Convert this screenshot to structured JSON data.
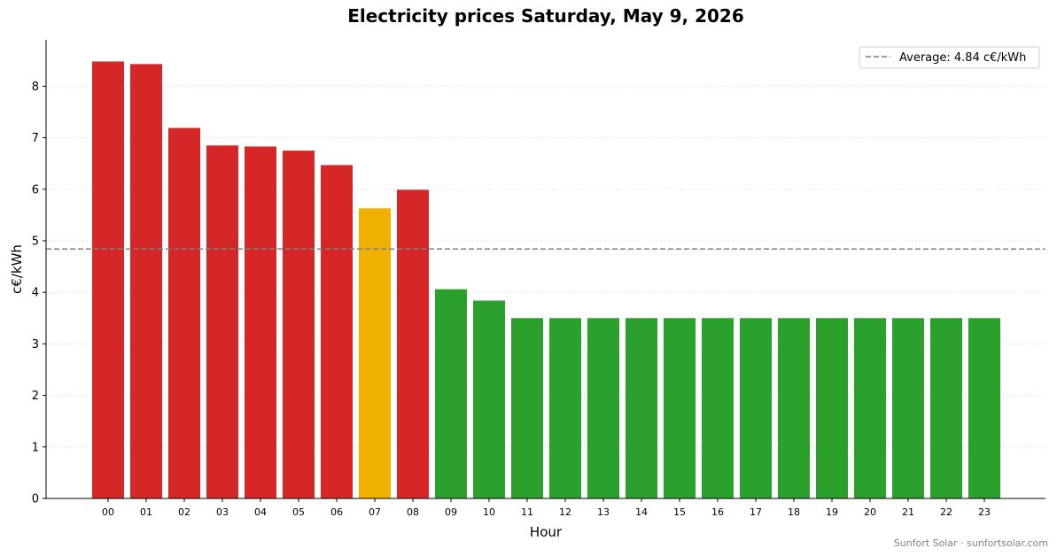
{
  "chart_data": {
    "type": "bar",
    "title": "Electricity prices Saturday, May 9, 2026",
    "xlabel": "Hour",
    "ylabel": "c€/kWh",
    "categories": [
      "00",
      "01",
      "02",
      "03",
      "04",
      "05",
      "06",
      "07",
      "08",
      "09",
      "10",
      "11",
      "12",
      "13",
      "14",
      "15",
      "16",
      "17",
      "18",
      "19",
      "20",
      "21",
      "22",
      "23"
    ],
    "values": [
      8.48,
      8.43,
      7.19,
      6.85,
      6.83,
      6.75,
      6.47,
      5.63,
      5.99,
      4.06,
      3.84,
      3.5,
      3.5,
      3.5,
      3.5,
      3.5,
      3.5,
      3.5,
      3.5,
      3.5,
      3.5,
      3.5,
      3.5,
      3.5
    ],
    "bar_colors": [
      "#d62728",
      "#d62728",
      "#d62728",
      "#d62728",
      "#d62728",
      "#d62728",
      "#d62728",
      "#f0b000",
      "#d62728",
      "#2ca02c",
      "#2ca02c",
      "#2ca02c",
      "#2ca02c",
      "#2ca02c",
      "#2ca02c",
      "#2ca02c",
      "#2ca02c",
      "#2ca02c",
      "#2ca02c",
      "#2ca02c",
      "#2ca02c",
      "#2ca02c",
      "#2ca02c",
      "#2ca02c"
    ],
    "ylim": [
      0,
      8.9
    ],
    "yticks": [
      0,
      1,
      2,
      3,
      4,
      5,
      6,
      7,
      8
    ],
    "grid": "horizontal-dotted",
    "average": {
      "value": 4.84,
      "label": "Average: 4.84 c€/kWh",
      "color": "#808080",
      "style": "dashed"
    },
    "legend_position": "top-right"
  },
  "footer": {
    "credit": "Sunfort Solar · sunfortsolar.com"
  }
}
